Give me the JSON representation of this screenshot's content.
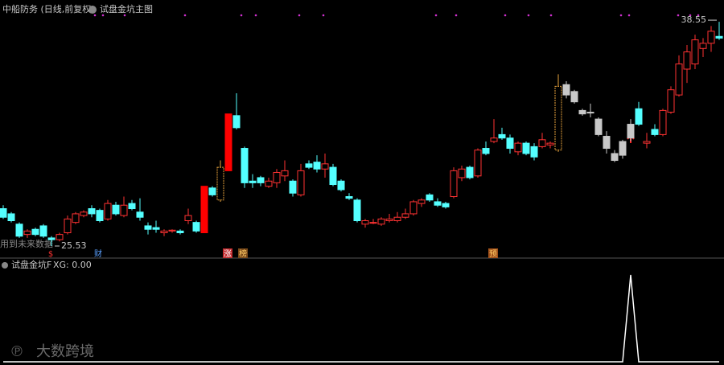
{
  "chart_data": [
    {
      "type": "candlestick",
      "title": "中船防务 (日线,前复权)",
      "subtitle": "试盘金坑主图",
      "max_label": 38.55,
      "min_label": 25.53,
      "note": "用到未来数据",
      "event_labels": [
        "$",
        "财",
        "涨",
        "榜",
        "预"
      ],
      "ylim": [
        24.97,
        38.88
      ],
      "style_colors": {
        "up": "#ff3232",
        "down": "#54ffff",
        "limit": "#ff0000",
        "gold": "#e6a23c",
        "gray": "#c8c8c8"
      },
      "series": [
        {
          "open": [
            27.7,
            27.4,
            26.8,
            26.2,
            26.5,
            26.7,
            26.0,
            25.9,
            26.3,
            26.9,
            27.3,
            27.7,
            27.6,
            27.1,
            27.9,
            27.3,
            28.0,
            27.5,
            26.7,
            26.6,
            26.3,
            26.4,
            26.4,
            27.0,
            26.9,
            26.3,
            28.9,
            28.2,
            29.9,
            33.1,
            31.2,
            29.3,
            29.5,
            29.0,
            29.2,
            29.6,
            29.3,
            28.5,
            30.3,
            30.4,
            30.0,
            30.1,
            29.3,
            28.4,
            28.2,
            26.8,
            26.9,
            26.8,
            27.0,
            27.0,
            27.2,
            27.4,
            28.0,
            28.5,
            28.1,
            28.0,
            28.4,
            29.5,
            30.1,
            29.6,
            31.2,
            31.6,
            32.0,
            31.8,
            31.0,
            31.5,
            31.3,
            31.3,
            31.4,
            31.1,
            34.9,
            34.5,
            33.4,
            33.3,
            32.9,
            31.9,
            30.9,
            30.8,
            32.6,
            33.5,
            31.5,
            32.3,
            32.0,
            33.3,
            34.3,
            35.8,
            36.1,
            37.0,
            37.3,
            37.7
          ],
          "high": [
            27.9,
            27.5,
            26.9,
            26.5,
            26.6,
            26.8,
            26.1,
            26.3,
            27.3,
            27.5,
            27.6,
            27.9,
            27.7,
            28.2,
            28.1,
            28.4,
            28.2,
            28.3,
            26.9,
            27.0,
            26.5,
            26.5,
            26.5,
            27.7,
            27.0,
            29.0,
            29.0,
            30.5,
            33.2,
            34.4,
            31.3,
            29.7,
            29.6,
            29.5,
            30.0,
            30.5,
            29.4,
            30.3,
            30.5,
            30.8,
            30.9,
            30.3,
            29.4,
            28.6,
            28.3,
            27.1,
            27.1,
            27.2,
            27.4,
            27.5,
            27.7,
            28.2,
            28.3,
            28.6,
            28.3,
            28.1,
            30.1,
            30.2,
            30.2,
            31.2,
            31.6,
            32.9,
            32.4,
            32.0,
            31.6,
            31.6,
            31.5,
            32.1,
            31.6,
            35.5,
            35.1,
            34.6,
            33.5,
            33.8,
            33.0,
            32.2,
            31.1,
            31.7,
            32.9,
            33.9,
            32.1,
            32.6,
            33.5,
            34.8,
            36.6,
            37.2,
            37.8,
            37.6,
            38.3,
            38.55
          ],
          "low": [
            27.1,
            26.9,
            26.0,
            26.0,
            26.1,
            26.0,
            25.53,
            25.8,
            26.2,
            26.8,
            27.2,
            27.2,
            26.9,
            27.0,
            27.3,
            27.2,
            27.6,
            27.0,
            26.2,
            26.3,
            26.1,
            26.3,
            26.2,
            26.8,
            26.3,
            26.3,
            28.4,
            28.1,
            29.9,
            32.3,
            28.9,
            28.9,
            29.0,
            28.9,
            28.9,
            29.3,
            28.4,
            28.4,
            30.0,
            29.8,
            29.5,
            29.0,
            28.7,
            28.2,
            26.9,
            26.6,
            26.8,
            26.7,
            26.9,
            26.9,
            27.1,
            27.3,
            27.8,
            28.1,
            27.8,
            27.7,
            28.3,
            29.3,
            29.4,
            29.5,
            30.8,
            31.5,
            31.7,
            30.9,
            30.8,
            30.8,
            30.5,
            31.2,
            31.2,
            31.0,
            34.1,
            33.8,
            33.1,
            33.0,
            31.9,
            30.9,
            30.4,
            30.6,
            31.6,
            32.5,
            31.2,
            31.9,
            31.9,
            33.2,
            34.2,
            35.0,
            35.8,
            36.5,
            36.8,
            37.5
          ],
          "close": [
            27.2,
            27.0,
            26.1,
            26.4,
            26.2,
            26.1,
            25.9,
            26.2,
            27.1,
            27.4,
            27.5,
            27.4,
            27.0,
            28.0,
            27.4,
            27.9,
            27.7,
            27.2,
            26.5,
            26.5,
            26.4,
            26.45,
            26.3,
            27.3,
            26.4,
            29.0,
            28.5,
            30.1,
            33.2,
            32.4,
            29.2,
            29.2,
            29.2,
            29.3,
            29.8,
            29.9,
            28.6,
            29.9,
            30.1,
            30.0,
            30.3,
            29.1,
            28.8,
            28.3,
            27.0,
            27.0,
            26.9,
            27.1,
            27.1,
            27.2,
            27.4,
            28.1,
            28.2,
            28.2,
            27.9,
            27.8,
            29.9,
            30.0,
            29.5,
            31.1,
            30.9,
            31.8,
            31.8,
            31.2,
            31.5,
            30.9,
            30.7,
            31.7,
            31.5,
            34.8,
            34.3,
            33.9,
            33.2,
            33.25,
            32.0,
            31.2,
            30.5,
            31.6,
            31.8,
            32.6,
            31.6,
            32.0,
            33.4,
            34.6,
            36.1,
            36.8,
            37.5,
            37.3,
            38.0,
            37.6
          ],
          "styles": [
            null,
            null,
            null,
            null,
            null,
            null,
            null,
            null,
            null,
            null,
            null,
            null,
            null,
            null,
            null,
            null,
            null,
            null,
            null,
            null,
            null,
            null,
            null,
            null,
            null,
            "limit",
            null,
            "gold",
            "limit",
            null,
            null,
            null,
            null,
            null,
            null,
            null,
            null,
            null,
            null,
            null,
            null,
            null,
            null,
            null,
            null,
            null,
            null,
            null,
            null,
            null,
            null,
            null,
            null,
            null,
            null,
            null,
            null,
            null,
            null,
            null,
            null,
            null,
            null,
            null,
            null,
            null,
            null,
            null,
            null,
            "gold",
            "gray",
            "gray",
            "gray",
            "gray",
            "gray",
            "gray",
            "gray",
            "gray",
            "gray",
            null,
            null,
            null,
            null,
            null,
            null,
            null,
            null,
            null,
            null,
            null
          ]
        }
      ]
    },
    {
      "type": "line",
      "title": "试盘金坑F",
      "value_text": "XG: 0.00",
      "color": "#ffffff",
      "ylim": [
        0,
        1
      ],
      "values": [
        0,
        0,
        0,
        0,
        0,
        0,
        0,
        0,
        0,
        0,
        0,
        0,
        0,
        0,
        0,
        0,
        0,
        0,
        0,
        0,
        0,
        0,
        0,
        0,
        0,
        0,
        0,
        0,
        0,
        0,
        0,
        0,
        0,
        0,
        0,
        0,
        0,
        0,
        0,
        0,
        0,
        0,
        0,
        0,
        0,
        0,
        0,
        0,
        0,
        0,
        0,
        0,
        0,
        0,
        0,
        0,
        0,
        0,
        0,
        0,
        0,
        0,
        0,
        0,
        0,
        0,
        0,
        0,
        0,
        0,
        0,
        0,
        0,
        0,
        0,
        0,
        0,
        0,
        1,
        0,
        0,
        0,
        0,
        0,
        0,
        0,
        0,
        0,
        0,
        0
      ]
    },
    {
      "watermark": "大数跨境"
    }
  ]
}
